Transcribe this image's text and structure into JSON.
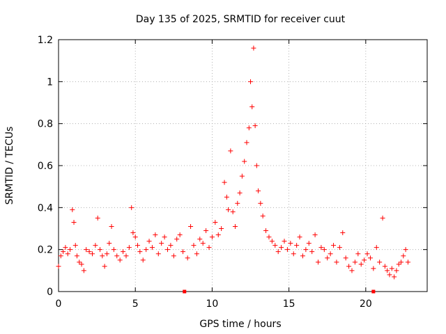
{
  "chart_data": {
    "type": "scatter",
    "title": "Day 135 of 2025, SRMTID for receiver cuut",
    "xlabel": "GPS time / hours",
    "ylabel": "SRMTID / TECUs",
    "xlim": [
      0,
      24
    ],
    "ylim": [
      0,
      1.2
    ],
    "x_ticks": [
      0,
      5,
      10,
      15,
      20
    ],
    "y_ticks": [
      0,
      0.2,
      0.4,
      0.6,
      0.8,
      1,
      1.2
    ],
    "x_tick_labels": [
      "0",
      "5",
      "10",
      "15",
      "20"
    ],
    "y_tick_labels": [
      "0",
      "0.2",
      "0.4",
      "0.6",
      "0.8",
      "1",
      "1.2"
    ],
    "grid": true,
    "marker": "plus",
    "color": "#ff0000",
    "series": [
      {
        "name": "SRMTID",
        "points": [
          [
            0.0,
            0.12
          ],
          [
            0.15,
            0.17
          ],
          [
            0.3,
            0.19
          ],
          [
            0.45,
            0.21
          ],
          [
            0.6,
            0.18
          ],
          [
            0.75,
            0.2
          ],
          [
            0.9,
            0.39
          ],
          [
            1.0,
            0.33
          ],
          [
            1.1,
            0.22
          ],
          [
            1.2,
            0.17
          ],
          [
            1.35,
            0.14
          ],
          [
            1.5,
            0.13
          ],
          [
            1.65,
            0.1
          ],
          [
            1.8,
            0.2
          ],
          [
            2.0,
            0.19
          ],
          [
            2.2,
            0.18
          ],
          [
            2.4,
            0.22
          ],
          [
            2.55,
            0.35
          ],
          [
            2.7,
            0.2
          ],
          [
            2.85,
            0.17
          ],
          [
            3.0,
            0.12
          ],
          [
            3.15,
            0.18
          ],
          [
            3.3,
            0.23
          ],
          [
            3.45,
            0.31
          ],
          [
            3.6,
            0.2
          ],
          [
            3.8,
            0.17
          ],
          [
            4.0,
            0.15
          ],
          [
            4.2,
            0.19
          ],
          [
            4.4,
            0.17
          ],
          [
            4.6,
            0.21
          ],
          [
            4.75,
            0.4
          ],
          [
            4.85,
            0.28
          ],
          [
            5.0,
            0.26
          ],
          [
            5.15,
            0.22
          ],
          [
            5.3,
            0.19
          ],
          [
            5.5,
            0.15
          ],
          [
            5.7,
            0.2
          ],
          [
            5.9,
            0.24
          ],
          [
            6.1,
            0.21
          ],
          [
            6.3,
            0.27
          ],
          [
            6.5,
            0.18
          ],
          [
            6.7,
            0.23
          ],
          [
            6.9,
            0.26
          ],
          [
            7.1,
            0.2
          ],
          [
            7.3,
            0.22
          ],
          [
            7.5,
            0.17
          ],
          [
            7.7,
            0.25
          ],
          [
            7.9,
            0.27
          ],
          [
            8.1,
            0.19
          ],
          [
            8.4,
            0.16
          ],
          [
            8.6,
            0.31
          ],
          [
            8.8,
            0.22
          ],
          [
            9.0,
            0.18
          ],
          [
            9.2,
            0.25
          ],
          [
            9.4,
            0.23
          ],
          [
            9.6,
            0.29
          ],
          [
            9.8,
            0.21
          ],
          [
            10.0,
            0.26
          ],
          [
            10.2,
            0.33
          ],
          [
            10.4,
            0.27
          ],
          [
            10.6,
            0.3
          ],
          [
            10.8,
            0.52
          ],
          [
            10.95,
            0.45
          ],
          [
            11.05,
            0.39
          ],
          [
            11.2,
            0.67
          ],
          [
            11.35,
            0.38
          ],
          [
            11.5,
            0.31
          ],
          [
            11.65,
            0.42
          ],
          [
            11.8,
            0.47
          ],
          [
            11.95,
            0.55
          ],
          [
            12.1,
            0.62
          ],
          [
            12.25,
            0.71
          ],
          [
            12.4,
            0.78
          ],
          [
            12.5,
            1.0
          ],
          [
            12.6,
            0.88
          ],
          [
            12.7,
            1.16
          ],
          [
            12.8,
            0.79
          ],
          [
            12.9,
            0.6
          ],
          [
            13.0,
            0.48
          ],
          [
            13.15,
            0.42
          ],
          [
            13.3,
            0.36
          ],
          [
            13.5,
            0.29
          ],
          [
            13.7,
            0.26
          ],
          [
            13.9,
            0.24
          ],
          [
            14.1,
            0.22
          ],
          [
            14.3,
            0.19
          ],
          [
            14.5,
            0.21
          ],
          [
            14.7,
            0.24
          ],
          [
            14.9,
            0.2
          ],
          [
            15.1,
            0.23
          ],
          [
            15.3,
            0.18
          ],
          [
            15.5,
            0.22
          ],
          [
            15.7,
            0.26
          ],
          [
            15.9,
            0.17
          ],
          [
            16.1,
            0.2
          ],
          [
            16.3,
            0.23
          ],
          [
            16.5,
            0.19
          ],
          [
            16.7,
            0.27
          ],
          [
            16.9,
            0.14
          ],
          [
            17.1,
            0.21
          ],
          [
            17.3,
            0.2
          ],
          [
            17.5,
            0.16
          ],
          [
            17.7,
            0.18
          ],
          [
            17.9,
            0.22
          ],
          [
            18.1,
            0.14
          ],
          [
            18.3,
            0.21
          ],
          [
            18.5,
            0.28
          ],
          [
            18.7,
            0.16
          ],
          [
            18.9,
            0.12
          ],
          [
            19.1,
            0.1
          ],
          [
            19.3,
            0.14
          ],
          [
            19.5,
            0.18
          ],
          [
            19.7,
            0.13
          ],
          [
            19.9,
            0.15
          ],
          [
            20.1,
            0.18
          ],
          [
            20.3,
            0.16
          ],
          [
            20.5,
            0.11
          ],
          [
            20.7,
            0.21
          ],
          [
            20.9,
            0.14
          ],
          [
            21.1,
            0.35
          ],
          [
            21.25,
            0.12
          ],
          [
            21.4,
            0.1
          ],
          [
            21.55,
            0.08
          ],
          [
            21.7,
            0.11
          ],
          [
            21.85,
            0.07
          ],
          [
            22.0,
            0.1
          ],
          [
            22.15,
            0.13
          ],
          [
            22.3,
            0.14
          ],
          [
            22.45,
            0.17
          ],
          [
            22.6,
            0.2
          ],
          [
            22.75,
            0.14
          ]
        ]
      }
    ],
    "axis_markers": [
      8.2,
      20.5
    ]
  }
}
